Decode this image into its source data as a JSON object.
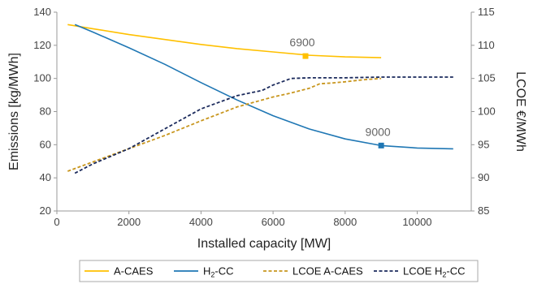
{
  "chart_data": {
    "type": "line",
    "x": {
      "label": "Installed capacity [MW]",
      "ticks": [
        0,
        2000,
        4000,
        6000,
        8000,
        10000
      ],
      "range": [
        0,
        11500
      ]
    },
    "y_left": {
      "label": "Emissions [kg/MWh]",
      "ticks": [
        20,
        40,
        60,
        80,
        100,
        120,
        140
      ],
      "range": [
        20,
        140
      ]
    },
    "y_right": {
      "label": "LCOE €/MWh",
      "ticks": [
        85,
        90,
        95,
        100,
        105,
        110,
        115
      ],
      "range": [
        85,
        115
      ]
    },
    "series": [
      {
        "name": "A-CAES",
        "axis": "left",
        "color": "#FFC000",
        "dash": "solid",
        "points": [
          [
            300,
            132.5
          ],
          [
            1000,
            130
          ],
          [
            2000,
            126.5
          ],
          [
            3000,
            123.5
          ],
          [
            4000,
            120.5
          ],
          [
            5000,
            118
          ],
          [
            6000,
            116
          ],
          [
            7000,
            114
          ],
          [
            8000,
            113
          ],
          [
            9000,
            112.5
          ]
        ]
      },
      {
        "name": "H2-CC",
        "axis": "left",
        "color": "#1F77B4",
        "dash": "solid",
        "points": [
          [
            500,
            132.5
          ],
          [
            1000,
            128
          ],
          [
            2000,
            118.5
          ],
          [
            3000,
            108.5
          ],
          [
            4000,
            97.5
          ],
          [
            5000,
            87
          ],
          [
            6000,
            77.5
          ],
          [
            7000,
            69.5
          ],
          [
            8000,
            63.5
          ],
          [
            9000,
            59.5
          ],
          [
            10000,
            58
          ],
          [
            11000,
            57.5
          ]
        ]
      },
      {
        "name": "LCOE A-CAES",
        "axis": "right",
        "color": "#C8961E",
        "dash": "dashed",
        "points": [
          [
            300,
            91
          ],
          [
            1000,
            92.4
          ],
          [
            2000,
            94.4
          ],
          [
            3000,
            96.4
          ],
          [
            4000,
            98.6
          ],
          [
            5000,
            100.7
          ],
          [
            6000,
            102.2
          ],
          [
            6500,
            102.8
          ],
          [
            7000,
            103.5
          ],
          [
            7300,
            104.2
          ],
          [
            7600,
            104.3
          ],
          [
            8000,
            104.5
          ],
          [
            8500,
            104.8
          ],
          [
            9000,
            105
          ]
        ]
      },
      {
        "name": "LCOE H2-CC",
        "axis": "right",
        "color": "#1B2A5C",
        "dash": "dashed",
        "points": [
          [
            500,
            90.7
          ],
          [
            1000,
            92.1
          ],
          [
            2000,
            94.4
          ],
          [
            3000,
            97.4
          ],
          [
            4000,
            100.4
          ],
          [
            5000,
            102.4
          ],
          [
            5700,
            103.2
          ],
          [
            6000,
            104
          ],
          [
            6500,
            105
          ],
          [
            7000,
            105.1
          ],
          [
            8000,
            105.1
          ],
          [
            9000,
            105.2
          ],
          [
            10000,
            105.2
          ],
          [
            11000,
            105.2
          ]
        ]
      }
    ],
    "markers": [
      {
        "series": "A-CAES",
        "x": 6900,
        "y": 113.5,
        "label": "6900",
        "color": "#FFC000"
      },
      {
        "series": "H2-CC",
        "x": 9000,
        "y": 59.5,
        "label": "9000",
        "color": "#1F77B4"
      }
    ],
    "legend": {
      "placement": "bottom",
      "items": [
        {
          "main": "A-CAES",
          "sub": "",
          "rest": "",
          "color": "#FFC000",
          "dash": "solid"
        },
        {
          "main": "H",
          "sub": "2",
          "rest": "-CC",
          "color": "#1F77B4",
          "dash": "solid"
        },
        {
          "main": "LCOE A-CAES",
          "sub": "",
          "rest": "",
          "color": "#C8961E",
          "dash": "dashed"
        },
        {
          "main": "LCOE H",
          "sub": "2",
          "rest": "-CC",
          "color": "#1B2A5C",
          "dash": "dashed"
        }
      ]
    },
    "grid": false
  }
}
